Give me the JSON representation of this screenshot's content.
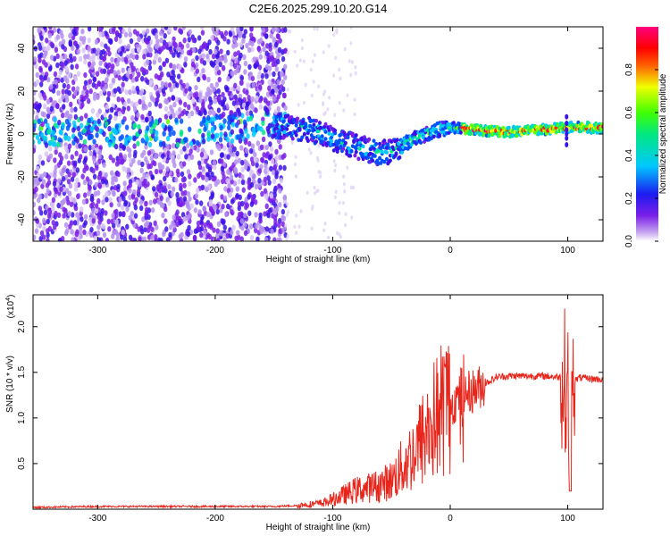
{
  "title": "C2E6.2025.299.10.20.G14",
  "chart_data": [
    {
      "type": "heatmap",
      "name": "spectrogram",
      "xlabel": "Height of straight line (km)",
      "ylabel": "Frequency (Hz)",
      "xlim": [
        -355,
        130
      ],
      "ylim": [
        -50,
        50
      ],
      "xticks": [
        -300,
        -200,
        -100,
        0,
        100
      ],
      "yticks": [
        -40,
        -20,
        0,
        20,
        40
      ],
      "colorbar": {
        "label": "Normalized spectral amplitude",
        "range": [
          0,
          1
        ],
        "ticks": [
          0.0,
          0.2,
          0.4,
          0.6,
          0.8
        ],
        "tick_labels": [
          "0.0",
          "0.2",
          "0.4",
          "0.6",
          "0.8"
        ],
        "colormap": "rainbow (white-violet-blue-cyan-green-yellow-red-magenta)"
      },
      "ridge": {
        "x": [
          -355,
          -300,
          -250,
          -200,
          -150,
          -120,
          -100,
          -80,
          -60,
          -50,
          -40,
          -30,
          -20,
          -10,
          0,
          20,
          50,
          80,
          100,
          130
        ],
        "y": [
          1,
          1,
          0,
          2,
          4,
          2,
          -2,
          -6,
          -9,
          -8,
          -5,
          -2,
          0,
          2,
          3,
          2,
          1,
          2,
          3,
          3
        ]
      }
    },
    {
      "type": "line",
      "name": "snr",
      "xlabel": "Height of straight line (km)",
      "ylabel": "SNR (10 * v/v)",
      "yunit": "(x10",
      "yexp": "4",
      "xlim": [
        -355,
        130
      ],
      "ylim": [
        0,
        2.35
      ],
      "xticks": [
        -300,
        -200,
        -100,
        0,
        100
      ],
      "yticks": [
        0.5,
        1.0,
        1.5,
        2.0
      ],
      "ytick_labels": [
        "0.5",
        "1.0",
        "1.5",
        "2.0"
      ],
      "color": "#e8251b",
      "x": [
        -355,
        -300,
        -250,
        -200,
        -150,
        -130,
        -110,
        -100,
        -90,
        -80,
        -70,
        -60,
        -50,
        -40,
        -30,
        -20,
        -10,
        0,
        10,
        20,
        30,
        40,
        50,
        60,
        70,
        80,
        90,
        95,
        100,
        102,
        105,
        110,
        120,
        130
      ],
      "y": [
        0.02,
        0.03,
        0.03,
        0.03,
        0.03,
        0.04,
        0.06,
        0.1,
        0.15,
        0.2,
        0.22,
        0.25,
        0.3,
        0.45,
        0.6,
        0.8,
        1.0,
        1.15,
        1.25,
        1.3,
        1.38,
        1.45,
        1.46,
        1.46,
        1.46,
        1.46,
        1.45,
        1.45,
        1.4,
        0.5,
        1.4,
        1.44,
        1.43,
        1.42
      ]
    }
  ]
}
